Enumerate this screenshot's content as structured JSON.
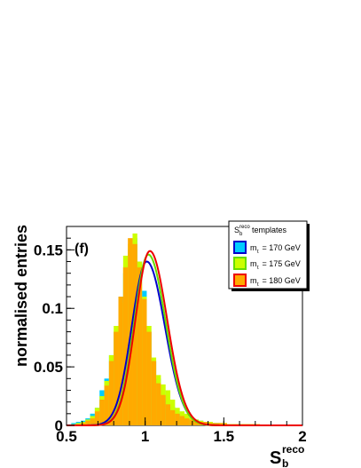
{
  "chart_data": {
    "type": "histogram",
    "panel_label": "(f)",
    "ylabel": "normalised entries",
    "xlabel_main": "S",
    "xlabel_sub": "b",
    "xlabel_sup": "reco",
    "xlim": [
      0.5,
      2.0
    ],
    "ylim": [
      0,
      0.17
    ],
    "x_ticks": [
      {
        "value": 0.5,
        "label": "0.5"
      },
      {
        "value": 1.0,
        "label": "1"
      },
      {
        "value": 1.5,
        "label": "1.5"
      },
      {
        "value": 2.0,
        "label": "2"
      }
    ],
    "y_ticks": [
      {
        "value": 0,
        "label": "0"
      },
      {
        "value": 0.05,
        "label": "0.05"
      },
      {
        "value": 0.1,
        "label": "0.1"
      },
      {
        "value": 0.15,
        "label": "0.15"
      }
    ],
    "bin_edges_start": 0.5,
    "bin_width": 0.03,
    "legend": {
      "title_main": "S",
      "title_sub": "b",
      "title_sup": "reco",
      "title_suffix": "templates",
      "entries": [
        {
          "prefix": "m",
          "sub": "t",
          "label": " = 170 GeV"
        },
        {
          "prefix": "m",
          "sub": "t",
          "label": " = 175 GeV"
        },
        {
          "prefix": "m",
          "sub": "t",
          "label": " = 180 GeV"
        }
      ]
    },
    "series": [
      {
        "fill": "#00ccff",
        "curve": "#0000cc",
        "values": [
          0,
          0.002,
          0.003,
          0.004,
          0.006,
          0.01,
          0.015,
          0.03,
          0.04,
          0.06,
          0.08,
          0.11,
          0.13,
          0.15,
          0.16,
          0.14,
          0.115,
          0.08,
          0.055,
          0.04,
          0.03,
          0.022,
          0.016,
          0.012,
          0.01,
          0.008,
          0.006,
          0.005,
          0.004,
          0.003,
          0.002,
          0.002,
          0.002,
          0.001,
          0.001,
          0.001,
          0.001,
          0.001,
          0.001,
          0.0,
          0.0,
          0.0,
          0.0,
          0.0,
          0.0,
          0.0,
          0.0,
          0.0,
          0.0,
          0.0
        ],
        "fit": {
          "amp": 0.14,
          "mean": 1.01,
          "sigma_left": 0.095,
          "sigma_right": 0.115
        }
      },
      {
        "fill": "#ccff00",
        "curve": "#66dd00",
        "values": [
          0,
          0.001,
          0.002,
          0.003,
          0.005,
          0.008,
          0.015,
          0.025,
          0.038,
          0.06,
          0.085,
          0.105,
          0.145,
          0.155,
          0.164,
          0.14,
          0.11,
          0.085,
          0.058,
          0.043,
          0.035,
          0.03,
          0.022,
          0.015,
          0.012,
          0.01,
          0.007,
          0.005,
          0.004,
          0.003,
          0.003,
          0.002,
          0.002,
          0.002,
          0.001,
          0.001,
          0.001,
          0.001,
          0.001,
          0.001,
          0.001,
          0.0,
          0.0,
          0.0,
          0.0,
          0.0,
          0.0,
          0.0,
          0.0,
          0.0
        ],
        "fit": {
          "amp": 0.146,
          "mean": 1.02,
          "sigma_left": 0.09,
          "sigma_right": 0.11
        }
      },
      {
        "fill": "#ffaa00",
        "curve": "#ee0000",
        "values": [
          0,
          0,
          0.001,
          0.002,
          0.004,
          0.006,
          0.012,
          0.022,
          0.034,
          0.055,
          0.08,
          0.11,
          0.135,
          0.16,
          0.155,
          0.135,
          0.108,
          0.08,
          0.055,
          0.036,
          0.026,
          0.018,
          0.013,
          0.01,
          0.008,
          0.006,
          0.005,
          0.004,
          0.003,
          0.003,
          0.002,
          0.002,
          0.002,
          0.002,
          0.001,
          0.001,
          0.001,
          0.001,
          0.001,
          0.001,
          0.001,
          0.0,
          0.0,
          0.0,
          0.0,
          0.0,
          0.0,
          0.0,
          0.0,
          0.0
        ],
        "fit": {
          "amp": 0.149,
          "mean": 1.03,
          "sigma_left": 0.092,
          "sigma_right": 0.11
        }
      }
    ]
  }
}
